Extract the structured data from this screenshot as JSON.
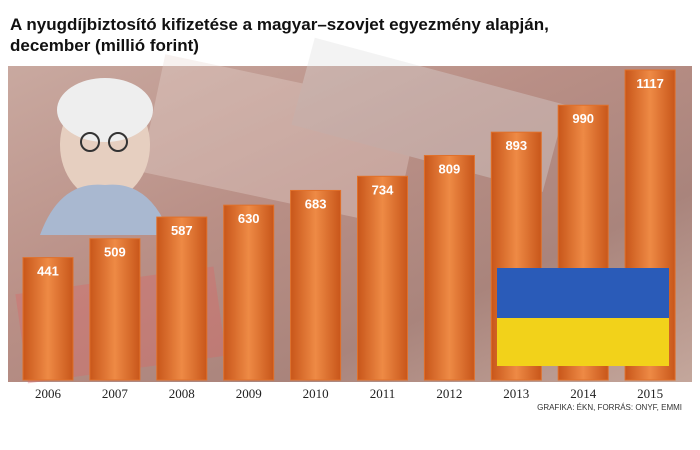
{
  "chart_data": {
    "type": "bar",
    "title": "A nyugdíjbiztosító kifizetése a magyar–szovjet egyezmény alapján,",
    "subtitle": "december (millió forint)",
    "categories": [
      "2006",
      "2007",
      "2008",
      "2009",
      "2010",
      "2011",
      "2012",
      "2013",
      "2014",
      "2015"
    ],
    "values": [
      441,
      509,
      587,
      630,
      683,
      734,
      809,
      893,
      990,
      1117
    ],
    "color": "#e0702a",
    "source": "GRAFIKA: ÉKN, FORRÁS: ONYF, EMMI"
  }
}
